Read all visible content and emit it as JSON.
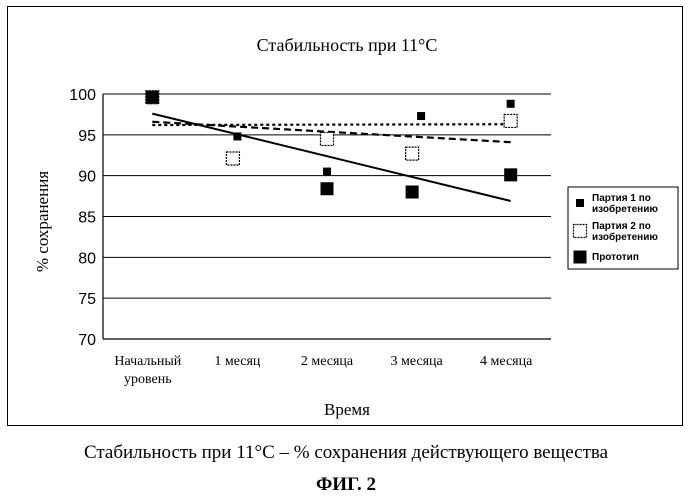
{
  "chart_data": {
    "type": "scatter",
    "title": "Стабильность при 11°C",
    "xlabel": "Время",
    "ylabel": "% сохранения",
    "ylim": [
      70,
      100
    ],
    "yticks": [
      70,
      75,
      80,
      85,
      90,
      95,
      100
    ],
    "categories": [
      "Начальный уровень",
      "1 месяц",
      "2 месяца",
      "3 месяца",
      "4 месяца"
    ],
    "grid": true,
    "legend_position": "right",
    "series": [
      {
        "name": "Партия 1 по изобретению",
        "marker": "small-filled-square",
        "points": [
          {
            "x": 0.05,
            "y": 99.6
          },
          {
            "x": 1.0,
            "y": 94.8
          },
          {
            "x": 2.0,
            "y": 90.5
          },
          {
            "x": 3.05,
            "y": 97.3
          },
          {
            "x": 4.05,
            "y": 98.8
          }
        ],
        "trendline": {
          "style": "dashed",
          "y_start": 96.6,
          "y_end": 94.1
        }
      },
      {
        "name": "Партия 2 по изобретению",
        "marker": "hollow-square",
        "points": [
          {
            "x": 0.05,
            "y": 99.6
          },
          {
            "x": 0.95,
            "y": 92.1
          },
          {
            "x": 2.0,
            "y": 94.5
          },
          {
            "x": 2.95,
            "y": 92.7
          },
          {
            "x": 4.05,
            "y": 96.7
          }
        ],
        "trendline": {
          "style": "dotted",
          "y_start": 96.2,
          "y_end": 96.3
        }
      },
      {
        "name": "Прототип",
        "marker": "large-filled-square",
        "points": [
          {
            "x": 0.05,
            "y": 99.6
          },
          {
            "x": 2.0,
            "y": 88.4
          },
          {
            "x": 2.95,
            "y": 88.0
          },
          {
            "x": 4.05,
            "y": 90.1
          }
        ],
        "trendline": {
          "style": "solid",
          "y_start": 97.6,
          "y_end": 86.9
        }
      }
    ]
  },
  "caption": "Стабильность при 11°C – % сохранения действующего вещества",
  "figure_label": "ФИГ. 2",
  "colors": {
    "ink": "#000000",
    "background": "#ffffff",
    "legend_box": "#ffffff"
  }
}
